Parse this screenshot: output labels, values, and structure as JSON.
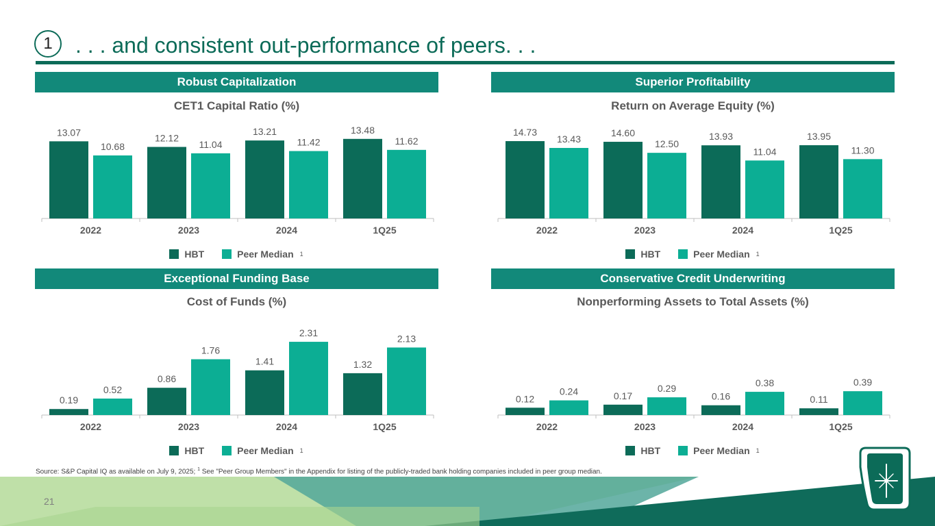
{
  "colors": {
    "hbt": "#0c6b58",
    "peer": "#0cae94",
    "band": "#12897a",
    "axis": "#bfbfbf",
    "label": "#595959"
  },
  "page": {
    "badge": "1",
    "title": ". . . and consistent out-performance of peers. . .",
    "page_number": "21"
  },
  "footnote": {
    "prefix": "Source: S&P Capital IQ as available on July 9, 2025; ",
    "sup": "1",
    "suffix": " See \"Peer Group Members\" in the Appendix for listing of the publicly-traded bank holding companies included in peer group median."
  },
  "sections": [
    {
      "band": "Robust Capitalization",
      "legend": {
        "hbt": "HBT",
        "peer": "Peer Median",
        "sup": "1"
      }
    },
    {
      "band": "Superior Profitability",
      "legend": {
        "hbt": "HBT",
        "peer": "Peer Median",
        "sup": "1"
      }
    },
    {
      "band": "Exceptional Funding Base",
      "legend": {
        "hbt": "HBT",
        "peer": "Peer Median",
        "sup": "1"
      }
    },
    {
      "band": "Conservative Credit Underwriting",
      "legend": {
        "hbt": "HBT",
        "peer": "Peer Median",
        "sup": "1"
      }
    }
  ],
  "chart_data": [
    {
      "type": "bar",
      "title": "CET1 Capital Ratio (%)",
      "categories": [
        "2022",
        "2023",
        "2024",
        "1Q25"
      ],
      "series": [
        {
          "name": "HBT",
          "values": [
            13.07,
            12.12,
            13.21,
            13.48
          ],
          "labels": [
            "13.07",
            "12.12",
            "13.21",
            "13.48"
          ]
        },
        {
          "name": "Peer Median",
          "values": [
            10.68,
            11.04,
            11.42,
            11.62
          ],
          "labels": [
            "10.68",
            "11.04",
            "11.42",
            "11.62"
          ]
        }
      ],
      "ylim": [
        0,
        14.5
      ]
    },
    {
      "type": "bar",
      "title": "Return on Average Equity (%)",
      "categories": [
        "2022",
        "2023",
        "2024",
        "1Q25"
      ],
      "series": [
        {
          "name": "HBT",
          "values": [
            14.73,
            14.6,
            13.93,
            13.95
          ],
          "labels": [
            "14.73",
            "14.60",
            "13.93",
            "13.95"
          ]
        },
        {
          "name": "Peer Median",
          "values": [
            13.43,
            12.5,
            11.04,
            11.3
          ],
          "labels": [
            "13.43",
            "12.50",
            "11.04",
            "11.30"
          ]
        }
      ],
      "ylim": [
        0,
        16.3
      ]
    },
    {
      "type": "bar",
      "title": "Cost of Funds (%)",
      "categories": [
        "2022",
        "2023",
        "2024",
        "1Q25"
      ],
      "series": [
        {
          "name": "HBT",
          "values": [
            0.19,
            0.86,
            1.41,
            1.32
          ],
          "labels": [
            "0.19",
            "0.86",
            "1.41",
            "1.32"
          ]
        },
        {
          "name": "Peer Median",
          "values": [
            0.52,
            1.76,
            2.31,
            2.13
          ],
          "labels": [
            "0.52",
            "1.76",
            "2.31",
            "2.13"
          ]
        }
      ],
      "ylim": [
        0,
        2.7
      ]
    },
    {
      "type": "bar",
      "title": "Nonperforming Assets to Total Assets (%)",
      "categories": [
        "2022",
        "2023",
        "2024",
        "1Q25"
      ],
      "series": [
        {
          "name": "HBT",
          "values": [
            0.12,
            0.17,
            0.16,
            0.11
          ],
          "labels": [
            "0.12",
            "0.17",
            "0.16",
            "0.11"
          ]
        },
        {
          "name": "Peer Median",
          "values": [
            0.24,
            0.29,
            0.38,
            0.39
          ],
          "labels": [
            "0.24",
            "0.29",
            "0.38",
            "0.39"
          ]
        }
      ],
      "ylim": [
        0,
        1.4
      ]
    }
  ]
}
